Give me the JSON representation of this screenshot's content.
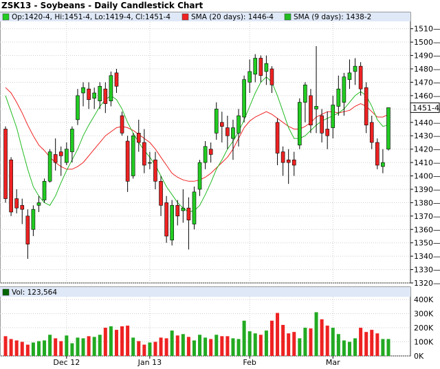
{
  "colors": {
    "up": "#22cc22",
    "down": "#ee2222",
    "sma20": "#ee2222",
    "sma9": "#22bb22",
    "grid": "#cccccc",
    "legend_bg": "#dfe8f7",
    "volume_up": "#22aa22",
    "volume_down": "#ee2222",
    "volume_series": "#006600"
  },
  "chart_data": {
    "type": "candlestick",
    "title": "ZSK13 - Soybeans - Daily Candlestick Chart",
    "legend": {
      "ohlc": "Op:1420-4, Hi:1451-4, Lo:1419-4, Cl:1451-4",
      "sma20": "SMA (20 days): 1446-4",
      "sma9": "SMA (9 days): 1438-2",
      "volume": "Vol: 123,564"
    },
    "last_price_label": "1451-4",
    "price_axis": {
      "ticks": [
        "1510—0",
        "1500—0",
        "1490—0",
        "1480—0",
        "1470—0",
        "1460—0",
        "1450—0",
        "1440—0",
        "1430—0",
        "1420—0",
        "1410—0",
        "1400—0",
        "1390—0",
        "1380—0",
        "1370—0",
        "1360—0",
        "1350—0",
        "1340—0",
        "1330—0",
        "1320—0"
      ],
      "min": 1320,
      "max": 1515
    },
    "volume_axis": {
      "ticks": [
        "400K",
        "300K",
        "200K",
        "100K",
        "0K"
      ],
      "min": 0,
      "max": 420000
    },
    "x_labels": [
      {
        "label": "Dec 12",
        "index": 11
      },
      {
        "label": "Jan 13",
        "index": 26
      },
      {
        "label": "Feb",
        "index": 44
      },
      {
        "label": "Mar",
        "index": 59
      }
    ],
    "candles": [
      {
        "o": 1435,
        "h": 1437,
        "l": 1380,
        "c": 1383
      },
      {
        "o": 1412,
        "h": 1414,
        "l": 1370,
        "c": 1373
      },
      {
        "o": 1383,
        "h": 1390,
        "l": 1372,
        "c": 1376
      },
      {
        "o": 1378,
        "h": 1383,
        "l": 1364,
        "c": 1375
      },
      {
        "o": 1370,
        "h": 1375,
        "l": 1338,
        "c": 1349
      },
      {
        "o": 1360,
        "h": 1378,
        "l": 1355,
        "c": 1375
      },
      {
        "o": 1378,
        "h": 1385,
        "l": 1373,
        "c": 1380
      },
      {
        "o": 1382,
        "h": 1398,
        "l": 1380,
        "c": 1396
      },
      {
        "o": 1396,
        "h": 1420,
        "l": 1395,
        "c": 1418
      },
      {
        "o": 1416,
        "h": 1428,
        "l": 1404,
        "c": 1410
      },
      {
        "o": 1418,
        "h": 1422,
        "l": 1400,
        "c": 1415
      },
      {
        "o": 1410,
        "h": 1425,
        "l": 1408,
        "c": 1420
      },
      {
        "o": 1418,
        "h": 1437,
        "l": 1410,
        "c": 1435
      },
      {
        "o": 1442,
        "h": 1465,
        "l": 1438,
        "c": 1460
      },
      {
        "o": 1462,
        "h": 1470,
        "l": 1452,
        "c": 1466
      },
      {
        "o": 1465,
        "h": 1470,
        "l": 1450,
        "c": 1457
      },
      {
        "o": 1458,
        "h": 1466,
        "l": 1450,
        "c": 1462
      },
      {
        "o": 1456,
        "h": 1470,
        "l": 1450,
        "c": 1467
      },
      {
        "o": 1465,
        "h": 1470,
        "l": 1447,
        "c": 1454
      },
      {
        "o": 1456,
        "h": 1478,
        "l": 1452,
        "c": 1475
      },
      {
        "o": 1477,
        "h": 1480,
        "l": 1462,
        "c": 1467
      },
      {
        "o": 1445,
        "h": 1448,
        "l": 1430,
        "c": 1432
      },
      {
        "o": 1426,
        "h": 1430,
        "l": 1388,
        "c": 1396
      },
      {
        "o": 1400,
        "h": 1432,
        "l": 1398,
        "c": 1430
      },
      {
        "o": 1432,
        "h": 1442,
        "l": 1418,
        "c": 1425
      },
      {
        "o": 1425,
        "h": 1435,
        "l": 1402,
        "c": 1408
      },
      {
        "o": 1410,
        "h": 1418,
        "l": 1405,
        "c": 1410
      },
      {
        "o": 1412,
        "h": 1418,
        "l": 1390,
        "c": 1396
      },
      {
        "o": 1396,
        "h": 1400,
        "l": 1370,
        "c": 1378
      },
      {
        "o": 1380,
        "h": 1385,
        "l": 1350,
        "c": 1355
      },
      {
        "o": 1352,
        "h": 1382,
        "l": 1348,
        "c": 1378
      },
      {
        "o": 1378,
        "h": 1382,
        "l": 1363,
        "c": 1370
      },
      {
        "o": 1374,
        "h": 1390,
        "l": 1365,
        "c": 1376
      },
      {
        "o": 1376,
        "h": 1384,
        "l": 1345,
        "c": 1367
      },
      {
        "o": 1364,
        "h": 1392,
        "l": 1360,
        "c": 1388
      },
      {
        "o": 1390,
        "h": 1412,
        "l": 1385,
        "c": 1410
      },
      {
        "o": 1410,
        "h": 1426,
        "l": 1405,
        "c": 1422
      },
      {
        "o": 1420,
        "h": 1425,
        "l": 1410,
        "c": 1416
      },
      {
        "o": 1432,
        "h": 1455,
        "l": 1427,
        "c": 1450
      },
      {
        "o": 1440,
        "h": 1448,
        "l": 1425,
        "c": 1437
      },
      {
        "o": 1436,
        "h": 1445,
        "l": 1420,
        "c": 1430
      },
      {
        "o": 1428,
        "h": 1442,
        "l": 1412,
        "c": 1436
      },
      {
        "o": 1432,
        "h": 1450,
        "l": 1422,
        "c": 1445
      },
      {
        "o": 1444,
        "h": 1475,
        "l": 1440,
        "c": 1472
      },
      {
        "o": 1470,
        "h": 1487,
        "l": 1462,
        "c": 1478
      },
      {
        "o": 1476,
        "h": 1491,
        "l": 1470,
        "c": 1488
      },
      {
        "o": 1488,
        "h": 1490,
        "l": 1470,
        "c": 1475
      },
      {
        "o": 1478,
        "h": 1490,
        "l": 1468,
        "c": 1484
      },
      {
        "o": 1480,
        "h": 1482,
        "l": 1462,
        "c": 1468
      },
      {
        "o": 1440,
        "h": 1443,
        "l": 1408,
        "c": 1417
      },
      {
        "o": 1418,
        "h": 1422,
        "l": 1400,
        "c": 1410
      },
      {
        "o": 1412,
        "h": 1420,
        "l": 1394,
        "c": 1410
      },
      {
        "o": 1412,
        "h": 1418,
        "l": 1400,
        "c": 1408
      },
      {
        "o": 1423,
        "h": 1458,
        "l": 1420,
        "c": 1455
      },
      {
        "o": 1455,
        "h": 1470,
        "l": 1440,
        "c": 1468
      },
      {
        "o": 1460,
        "h": 1465,
        "l": 1432,
        "c": 1438
      },
      {
        "o": 1450,
        "h": 1497,
        "l": 1432,
        "c": 1452
      },
      {
        "o": 1445,
        "h": 1450,
        "l": 1425,
        "c": 1432
      },
      {
        "o": 1435,
        "h": 1448,
        "l": 1420,
        "c": 1430
      },
      {
        "o": 1436,
        "h": 1460,
        "l": 1428,
        "c": 1453
      },
      {
        "o": 1452,
        "h": 1475,
        "l": 1445,
        "c": 1465
      },
      {
        "o": 1455,
        "h": 1477,
        "l": 1445,
        "c": 1474
      },
      {
        "o": 1472,
        "h": 1487,
        "l": 1465,
        "c": 1477
      },
      {
        "o": 1478,
        "h": 1488,
        "l": 1468,
        "c": 1482
      },
      {
        "o": 1482,
        "h": 1485,
        "l": 1460,
        "c": 1465
      },
      {
        "o": 1466,
        "h": 1470,
        "l": 1432,
        "c": 1438
      },
      {
        "o": 1440,
        "h": 1445,
        "l": 1420,
        "c": 1425
      },
      {
        "o": 1425,
        "h": 1428,
        "l": 1405,
        "c": 1408
      },
      {
        "o": 1407,
        "h": 1420,
        "l": 1402,
        "c": 1410
      },
      {
        "o": 1420,
        "h": 1451,
        "l": 1419,
        "c": 1451
      }
    ],
    "sma20": [
      1466,
      1462,
      1455,
      1447,
      1438,
      1430,
      1423,
      1419,
      1414,
      1410,
      1407,
      1405,
      1405,
      1407,
      1410,
      1415,
      1420,
      1425,
      1430,
      1433,
      1436,
      1437,
      1436,
      1434,
      1431,
      1428,
      1425,
      1420,
      1414,
      1408,
      1402,
      1399,
      1397,
      1396,
      1396,
      1397,
      1399,
      1402,
      1406,
      1410,
      1414,
      1420,
      1428,
      1436,
      1441,
      1444,
      1446,
      1448,
      1446,
      1443,
      1440,
      1437,
      1435,
      1435,
      1437,
      1440,
      1444,
      1446,
      1448,
      1448,
      1447,
      1448,
      1449,
      1452,
      1454,
      1452,
      1448,
      1444,
      1444,
      1446
    ],
    "sma9": [
      1460,
      1448,
      1436,
      1420,
      1405,
      1392,
      1385,
      1380,
      1378,
      1385,
      1395,
      1404,
      1412,
      1420,
      1430,
      1438,
      1445,
      1452,
      1457,
      1460,
      1457,
      1450,
      1440,
      1432,
      1425,
      1419,
      1414,
      1408,
      1400,
      1392,
      1386,
      1380,
      1376,
      1373,
      1374,
      1378,
      1386,
      1395,
      1405,
      1412,
      1420,
      1426,
      1433,
      1442,
      1452,
      1462,
      1470,
      1474,
      1470,
      1460,
      1448,
      1436,
      1428,
      1428,
      1430,
      1434,
      1438,
      1441,
      1443,
      1445,
      1447,
      1450,
      1455,
      1460,
      1463,
      1460,
      1452,
      1442,
      1437,
      1438
    ],
    "volumes": [
      140000,
      120000,
      110000,
      100000,
      80000,
      95000,
      105000,
      110000,
      150000,
      125000,
      105000,
      145000,
      90000,
      130000,
      125000,
      140000,
      135000,
      150000,
      200000,
      210000,
      185000,
      210000,
      215000,
      130000,
      105000,
      80000,
      95000,
      100000,
      130000,
      125000,
      180000,
      145000,
      155000,
      135000,
      110000,
      150000,
      130000,
      120000,
      150000,
      140000,
      140000,
      125000,
      120000,
      250000,
      175000,
      160000,
      150000,
      180000,
      250000,
      305000,
      220000,
      160000,
      170000,
      125000,
      200000,
      195000,
      310000,
      260000,
      215000,
      200000,
      155000,
      110000,
      100000,
      125000,
      200000,
      170000,
      185000,
      160000,
      120000,
      120000
    ]
  }
}
